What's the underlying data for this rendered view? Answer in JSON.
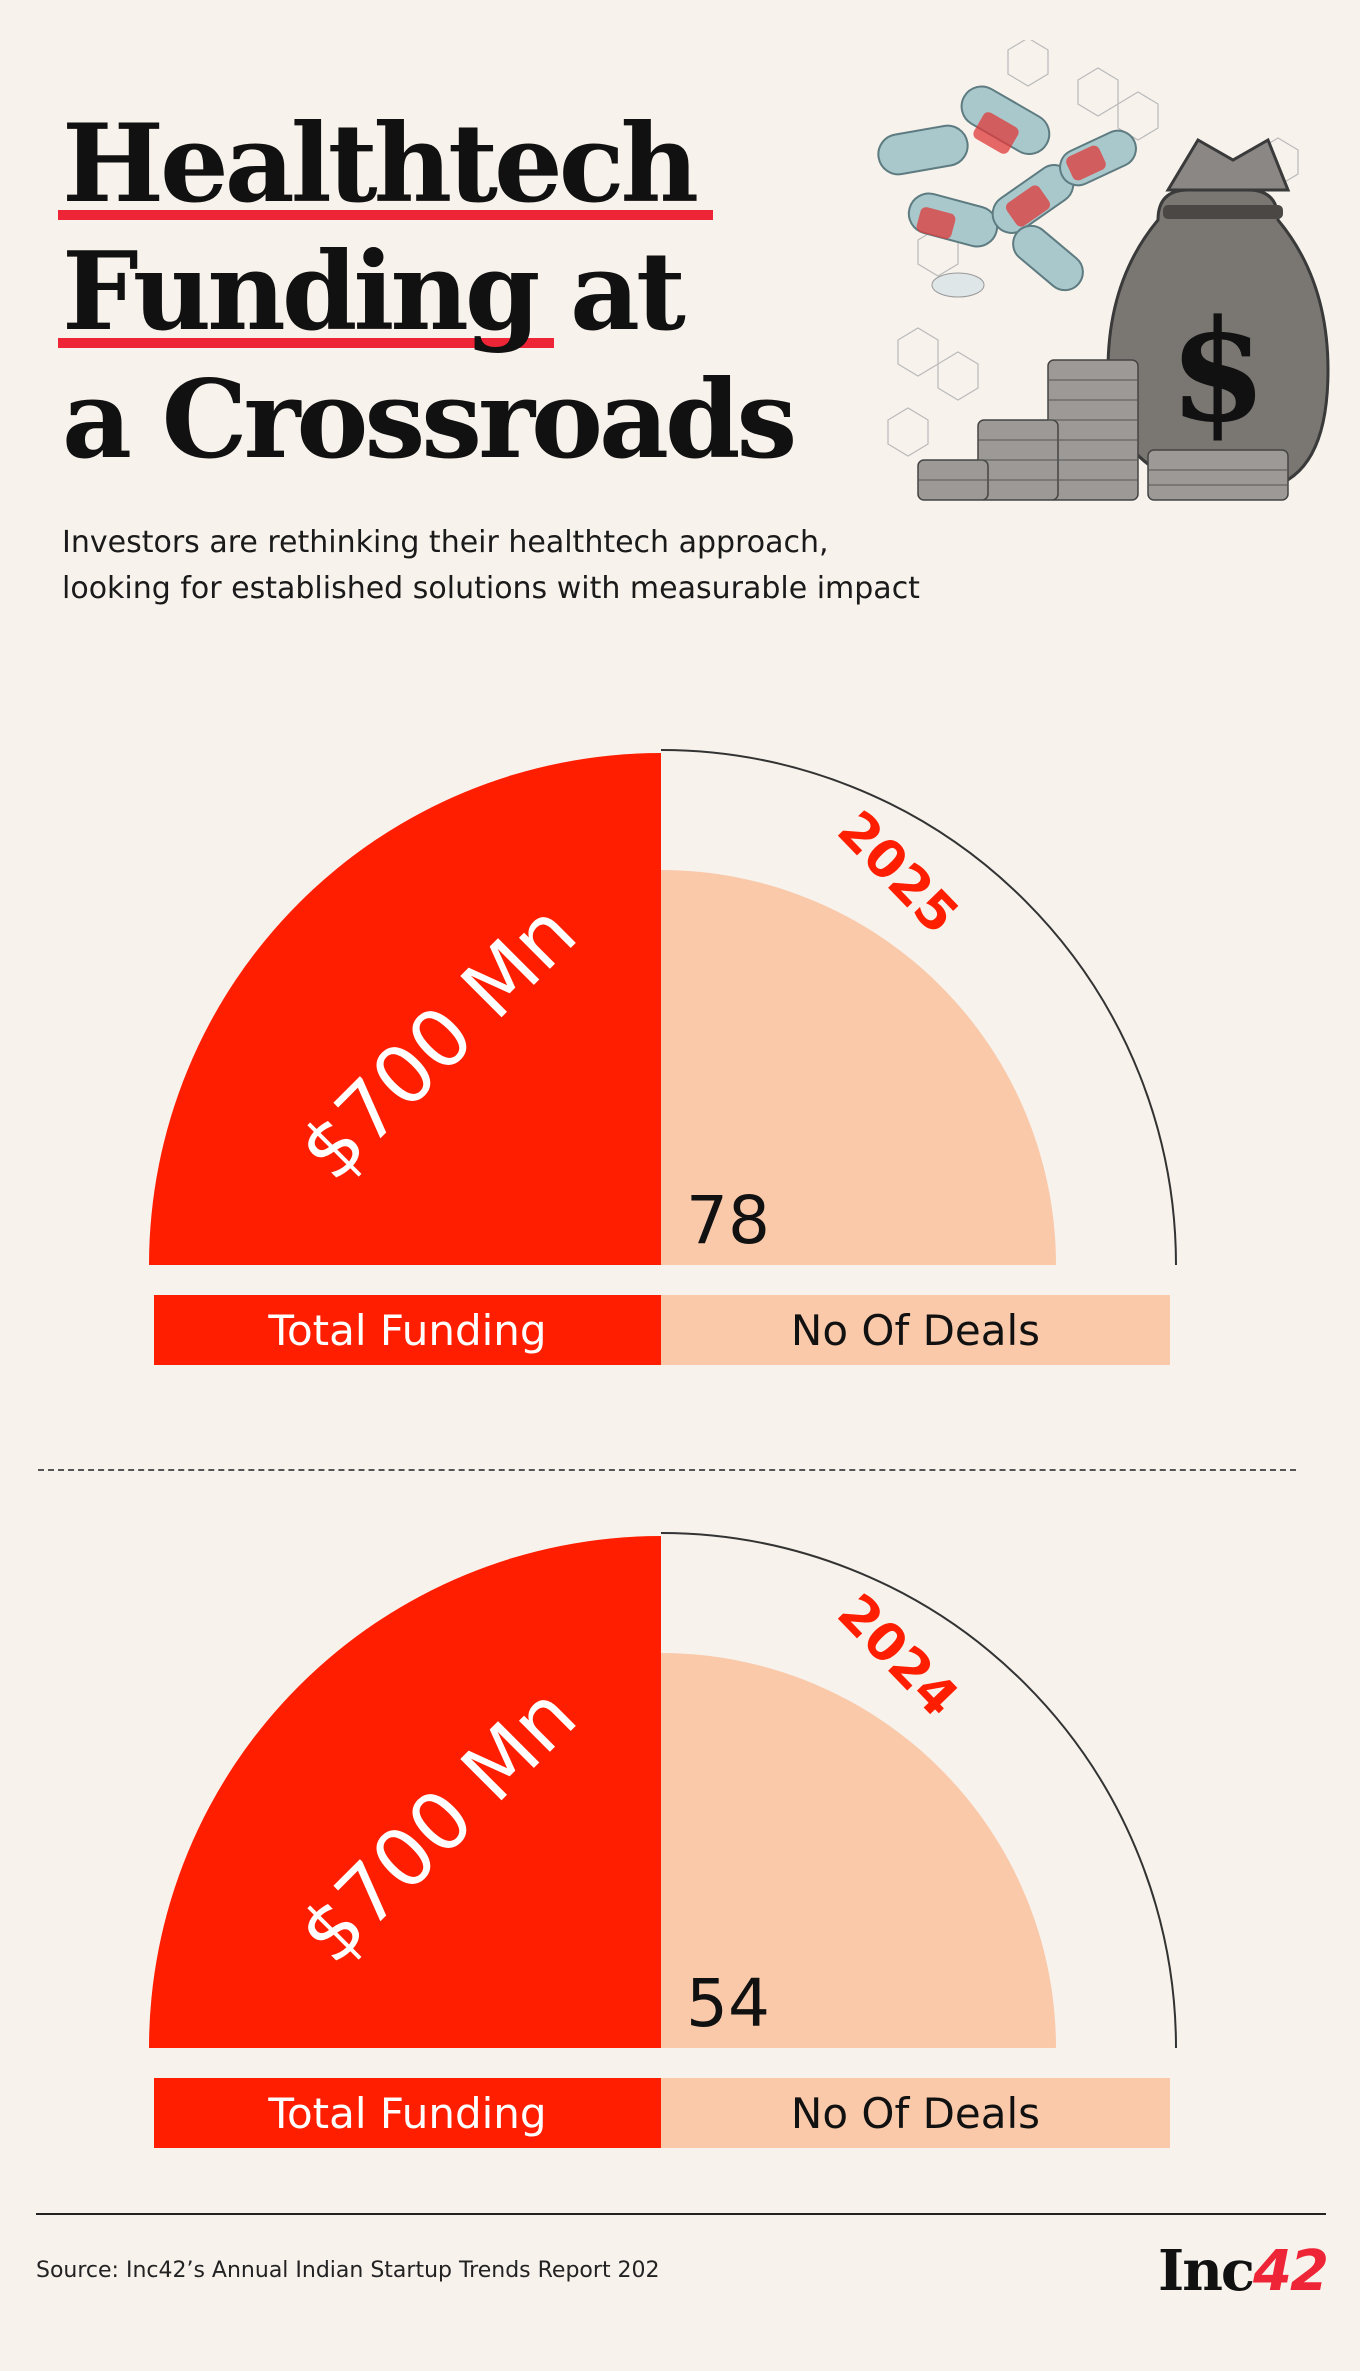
{
  "header": {
    "title_line1": "Healthtech",
    "title_line2a": "Funding",
    "title_line2b": "at",
    "title_line3": "a Crossroads",
    "subtitle_line1": "Investors are rethinking their healthtech approach,",
    "subtitle_line2": "looking for established solutions with measurable impact",
    "illustration_icon": "money-bag-and-pills-icon"
  },
  "colors": {
    "funding": "#ff1e00",
    "deals": "#f9c9aa",
    "accent": "#ee2536",
    "background": "#f7f2ec"
  },
  "chart_data": [
    {
      "type": "pie",
      "year": "2025",
      "funding_label": "$700 Mn",
      "deals_value": "78",
      "series": [
        {
          "name": "Total Funding",
          "value": 700,
          "display": "$700 Mn"
        },
        {
          "name": "No Of Deals",
          "value": 78,
          "display": "78"
        }
      ],
      "legend": [
        "Total Funding",
        "No Of Deals"
      ]
    },
    {
      "type": "pie",
      "year": "2024",
      "funding_label": "$700 Mn",
      "deals_value": "54",
      "series": [
        {
          "name": "Total Funding",
          "value": 700,
          "display": "$700 Mn"
        },
        {
          "name": "No Of Deals",
          "value": 54,
          "display": "54"
        }
      ],
      "legend": [
        "Total Funding",
        "No Of Deals"
      ]
    }
  ],
  "footer": {
    "source": "Source: Inc42’s Annual Indian Startup Trends Report 202",
    "logo_part1": "Inc",
    "logo_part2": "42"
  }
}
